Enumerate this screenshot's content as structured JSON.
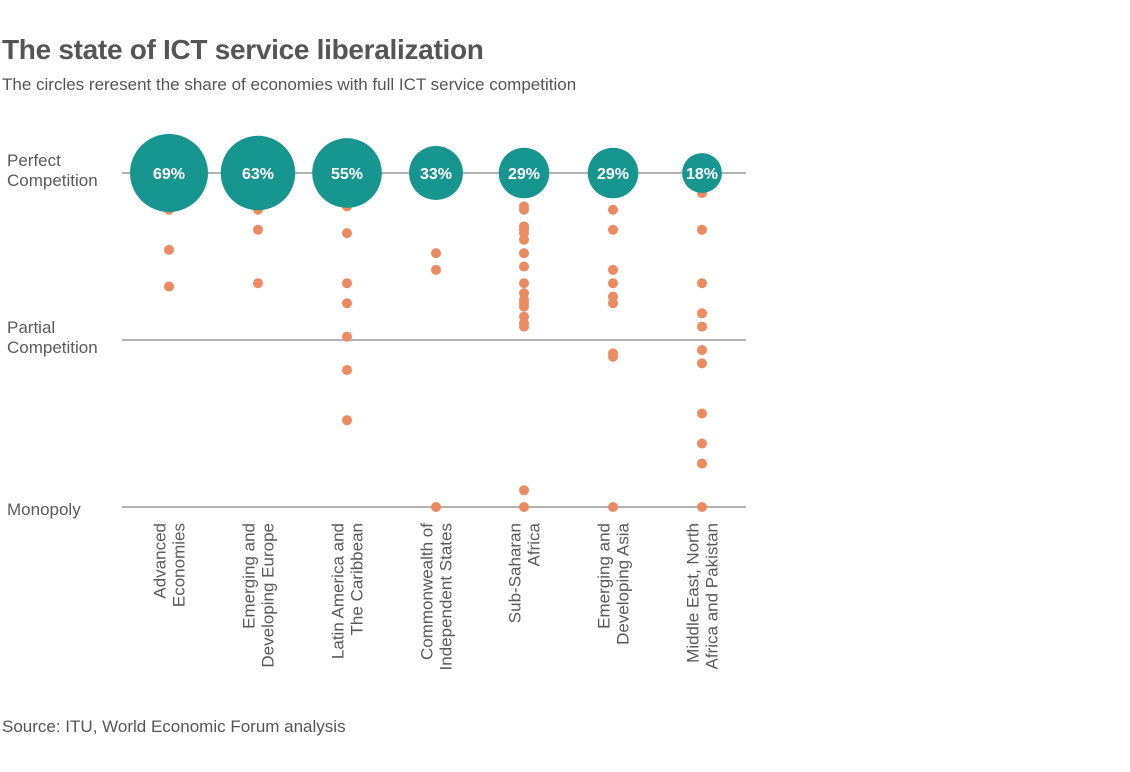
{
  "title": "The state of ICT service liberalization",
  "subtitle": "The circles reresent the share of economies with full ICT service competition",
  "source": "Source: ITU, World Economic Forum analysis",
  "colors": {
    "bubble": "#17968f",
    "dot": "#ee8a60",
    "grid": "#9a9a9a",
    "text": "#555555"
  },
  "chart_data": {
    "type": "scatter",
    "y_levels": [
      {
        "label_lines": [
          "Perfect",
          "Competition"
        ],
        "value": 1
      },
      {
        "label_lines": [
          "Partial",
          "Competition"
        ],
        "value": 0.5
      },
      {
        "label_lines": [
          "Monopoly"
        ],
        "value": 0
      }
    ],
    "categories": [
      {
        "label_lines": [
          "Advanced",
          "Economies"
        ],
        "share_full_competition_pct": 69,
        "share_label": "69%",
        "points": [
          0.89,
          0.77,
          0.66
        ]
      },
      {
        "label_lines": [
          "Emerging and",
          "Developing Europe"
        ],
        "share_full_competition_pct": 63,
        "share_label": "63%",
        "points": [
          0.89,
          0.83,
          0.67
        ]
      },
      {
        "label_lines": [
          "Latin America and",
          "The Caribbean"
        ],
        "share_full_competition_pct": 55,
        "share_label": "55%",
        "points": [
          0.9,
          0.82,
          0.67,
          0.61,
          0.51,
          0.41,
          0.26
        ]
      },
      {
        "label_lines": [
          "Commonwealth of",
          "Independent States"
        ],
        "share_full_competition_pct": 33,
        "share_label": "33%",
        "points": [
          0.76,
          0.71,
          0.0
        ]
      },
      {
        "label_lines": [
          "Sub-Saharan",
          "Africa"
        ],
        "share_full_competition_pct": 29,
        "share_label": "29%",
        "points": [
          0.9,
          0.89,
          0.84,
          0.83,
          0.82,
          0.8,
          0.76,
          0.72,
          0.67,
          0.64,
          0.62,
          0.61,
          0.6,
          0.57,
          0.55,
          0.54,
          0.05,
          0.0
        ]
      },
      {
        "label_lines": [
          "Emerging and",
          "Developing Asia"
        ],
        "share_full_competition_pct": 29,
        "share_label": "29%",
        "points": [
          0.89,
          0.83,
          0.71,
          0.67,
          0.63,
          0.61,
          0.46,
          0.45,
          0.0
        ]
      },
      {
        "label_lines": [
          "Middle East, North",
          "Africa and Pakistan"
        ],
        "share_full_competition_pct": 18,
        "share_label": "18%",
        "points": [
          0.94,
          0.83,
          0.67,
          0.58,
          0.54,
          0.47,
          0.43,
          0.28,
          0.19,
          0.13,
          0.0
        ]
      }
    ],
    "legend": "none",
    "grid": true
  }
}
